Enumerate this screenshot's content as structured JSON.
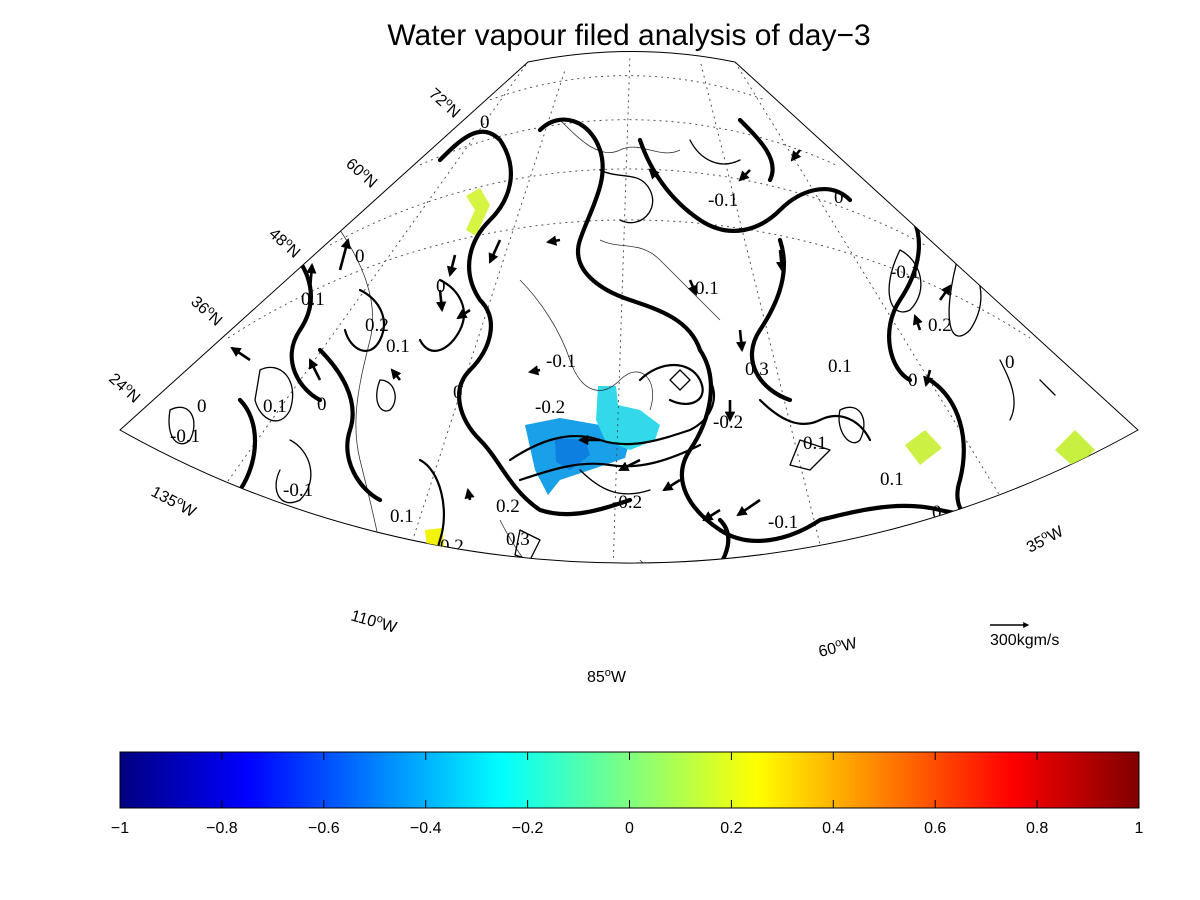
{
  "figure": {
    "title": "Water vapour filed analysis of day−3"
  },
  "map": {
    "lat_labels": [
      {
        "deg": "72",
        "hem": "N"
      },
      {
        "deg": "60",
        "hem": "N"
      },
      {
        "deg": "48",
        "hem": "N"
      },
      {
        "deg": "36",
        "hem": "N"
      },
      {
        "deg": "24",
        "hem": "N"
      }
    ],
    "lon_labels": [
      {
        "deg": "135",
        "hem": "W"
      },
      {
        "deg": "110",
        "hem": "W"
      },
      {
        "deg": "85",
        "hem": "W"
      },
      {
        "deg": "60",
        "hem": "W"
      },
      {
        "deg": "35",
        "hem": "W"
      }
    ],
    "reference_vector": {
      "label": "300kgm/s"
    },
    "contour_labels": [
      "0",
      "0",
      "0",
      "0",
      "0",
      "0",
      "0",
      "0",
      "0",
      "0",
      "0",
      "0",
      "0.1",
      "0.1",
      "0.1",
      "0.1",
      "0.1",
      "0.1",
      "0.1",
      "0.1",
      "0.1",
      "-0.1",
      "-0.1",
      "-0.1",
      "-0.1",
      "-0.1",
      "-0.1",
      "0.2",
      "0.2",
      "0.2",
      "0.2",
      "-0.2",
      "-0.2",
      "-0.2",
      "0.3",
      "0.3"
    ],
    "colors": {
      "blue": "#1aa0e8",
      "deep_blue": "#0d7fe0",
      "cyan": "#33e6e6",
      "yellow_green": "#d6f542",
      "yellow": "#f2f20a"
    }
  },
  "colorbar": {
    "min": -1,
    "max": 1,
    "colormap": "jet",
    "ticks": [
      "−1",
      "−0.8",
      "−0.6",
      "−0.4",
      "−0.2",
      "0",
      "0.2",
      "0.4",
      "0.6",
      "0.8",
      "1"
    ]
  }
}
